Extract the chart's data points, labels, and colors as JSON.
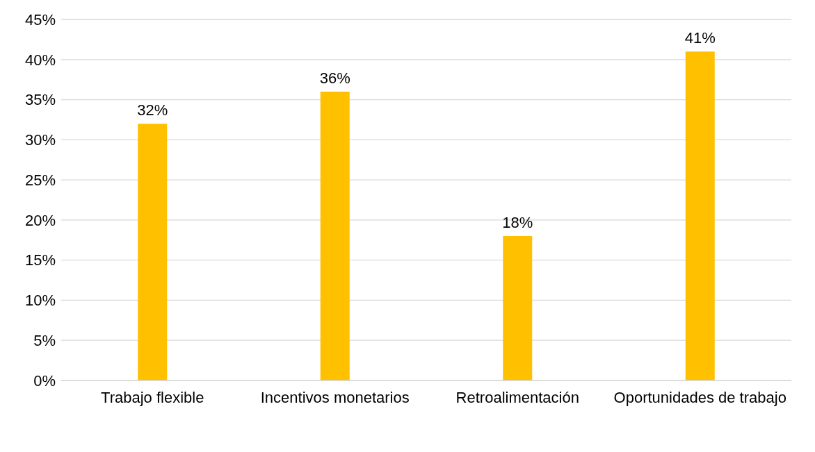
{
  "chart_data": {
    "type": "bar",
    "categories": [
      "Trabajo flexible",
      "Incentivos monetarios",
      "Retroalimentación",
      "Oportunidades de trabajo"
    ],
    "values": [
      32,
      36,
      18,
      41
    ],
    "color": "#ffc000",
    "value_labels": [
      "32%",
      "36%",
      "18%",
      "41%"
    ],
    "ylim": [
      0,
      45
    ],
    "yticks": [
      {
        "value": 0,
        "label": "0%"
      },
      {
        "value": 5,
        "label": "5%"
      },
      {
        "value": 10,
        "label": "10%"
      },
      {
        "value": 15,
        "label": "15%"
      },
      {
        "value": 20,
        "label": "20%"
      },
      {
        "value": 25,
        "label": "25%"
      },
      {
        "value": 30,
        "label": "30%"
      },
      {
        "value": 35,
        "label": "35%"
      },
      {
        "value": 40,
        "label": "40%"
      },
      {
        "value": 45,
        "label": "45%"
      }
    ],
    "grid": "y",
    "legend": false
  }
}
